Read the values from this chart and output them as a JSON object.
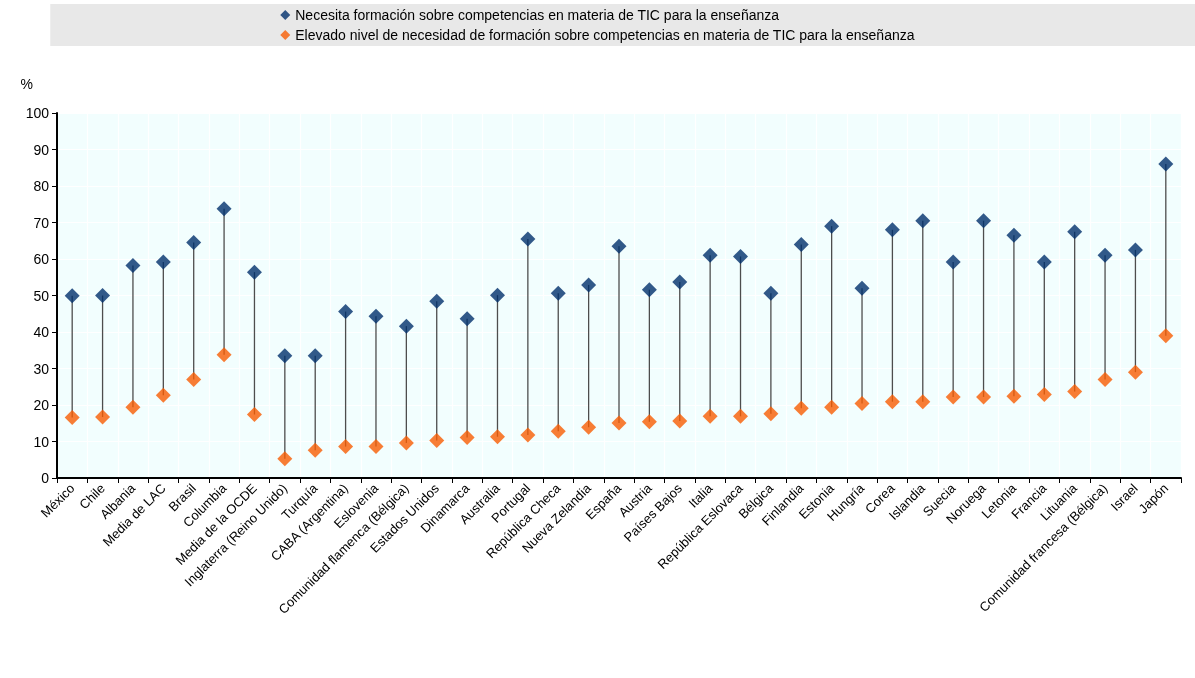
{
  "chart_data": {
    "type": "scatter",
    "ylabel": "%",
    "ylim": [
      0,
      100
    ],
    "yticks": [
      0,
      10,
      20,
      30,
      40,
      50,
      60,
      70,
      80,
      90,
      100
    ],
    "grid": true,
    "legend": "top",
    "marker": "diamond",
    "categories": [
      "México",
      "Chile",
      "Albania",
      "Media de LAC",
      "Brasil",
      "Columbia",
      "Media de la OCDE",
      "Inglaterra (Reino Unido)",
      "Turquía",
      "CABA (Argentina)",
      "Eslovenia",
      "Comunidad flamenca (Bélgica)",
      "Estados Unidos",
      "Dinamarca",
      "Australia",
      "Portugal",
      "República Checa",
      "Nueva Zelandia",
      "España",
      "Austria",
      "Países Bajos",
      "Italia",
      "República Eslovaca",
      "Bélgica",
      "Finlandia",
      "Estonia",
      "Hungría",
      "Corea",
      "Islandia",
      "Suecia",
      "Noruega",
      "Letonia",
      "Francia",
      "Lituania",
      "Comunidad francesa (Bélgica)",
      "Israel",
      "Japón"
    ],
    "series": [
      {
        "name": "Necesita formación sobre competencias en materia de TIC para la enseñanza",
        "color": "#002f6c",
        "values": [
          49.9,
          50,
          58.2,
          59.2,
          64.5,
          73.8,
          56.4,
          33.5,
          33.5,
          45.6,
          44.3,
          41.6,
          48.4,
          43.6,
          50.1,
          65.5,
          50.6,
          52.9,
          63.5,
          51.6,
          53.7,
          61,
          60.7,
          50.6,
          64,
          69,
          52,
          68,
          70.5,
          59.2,
          70.5,
          66.5,
          59.2,
          67.5,
          61,
          62.5,
          86
        ]
      },
      {
        "name": "Elevado nivel de necesidad de formación sobre competencias en materia de TIC para la enseñanza",
        "color": "#f75c03",
        "values": [
          16.6,
          16.7,
          19.4,
          22.7,
          27,
          33.8,
          17.4,
          5.3,
          7.6,
          8.6,
          8.6,
          9.6,
          10.3,
          11.1,
          11.3,
          11.8,
          12.8,
          13.9,
          15.1,
          15.4,
          15.6,
          16.9,
          16.9,
          17.6,
          19.1,
          19.4,
          20.4,
          20.9,
          20.9,
          22.2,
          22.2,
          22.4,
          22.9,
          23.7,
          27,
          29,
          39
        ]
      }
    ]
  }
}
